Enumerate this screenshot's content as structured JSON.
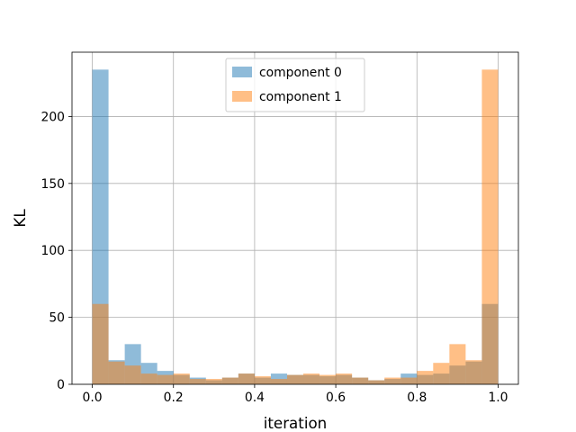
{
  "chart_data": {
    "type": "bar",
    "chart_kind": "histogram",
    "title": "",
    "xlabel": "iteration",
    "ylabel": "KL",
    "xlim": [
      -0.05,
      1.05
    ],
    "ylim": [
      0,
      248
    ],
    "bin_width": 0.04,
    "bin_edges": [
      0.0,
      0.04,
      0.08,
      0.12,
      0.16,
      0.2,
      0.24,
      0.28,
      0.32,
      0.36,
      0.4,
      0.44,
      0.48,
      0.52,
      0.56,
      0.6,
      0.64,
      0.68,
      0.72,
      0.76,
      0.8,
      0.84,
      0.88,
      0.92,
      0.96,
      1.0
    ],
    "x_ticks": [
      0.0,
      0.2,
      0.4,
      0.6,
      0.8,
      1.0
    ],
    "x_tick_labels": [
      "0.0",
      "0.2",
      "0.4",
      "0.6",
      "0.8",
      "1.0"
    ],
    "y_ticks": [
      0,
      50,
      100,
      150,
      200
    ],
    "y_tick_labels": [
      "0",
      "50",
      "100",
      "150",
      "200"
    ],
    "grid": true,
    "legend_position": "top-center",
    "series": [
      {
        "name": "component 0",
        "color": "#1f77b4",
        "alpha": 0.5,
        "values": [
          235,
          18,
          30,
          16,
          10,
          7,
          5,
          3,
          5,
          8,
          5,
          8,
          7,
          7,
          6,
          7,
          5,
          3,
          4,
          8,
          7,
          8,
          14,
          17,
          60
        ]
      },
      {
        "name": "component 1",
        "color": "#ff7f0e",
        "alpha": 0.5,
        "values": [
          60,
          17,
          14,
          8,
          7,
          8,
          4,
          4,
          5,
          8,
          6,
          4,
          7,
          8,
          7,
          8,
          5,
          3,
          5,
          5,
          10,
          16,
          30,
          18,
          235
        ]
      }
    ]
  }
}
